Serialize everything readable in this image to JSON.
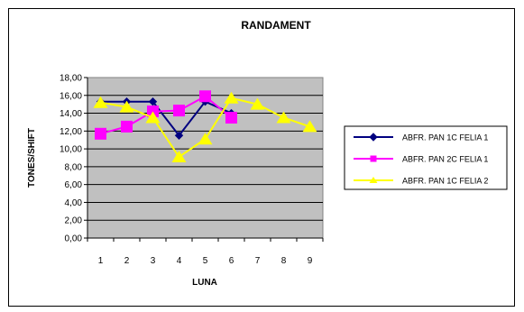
{
  "chart_data": {
    "type": "line",
    "title": "RANDAMENT",
    "xlabel": "LUNA",
    "ylabel": "TONES/SHIFT",
    "ylim": [
      0,
      18
    ],
    "yticks": [
      "0,00",
      "2,00",
      "4,00",
      "6,00",
      "8,00",
      "10,00",
      "12,00",
      "14,00",
      "16,00",
      "18,00"
    ],
    "categories": [
      "1",
      "2",
      "3",
      "4",
      "5",
      "6",
      "7",
      "8",
      "9"
    ],
    "grid": true,
    "legend_position": "right",
    "plot_background": "#c0c0c0",
    "series": [
      {
        "name": "ABFR. PAN 1C FELIA 1",
        "color": "#000080",
        "marker": "diamond",
        "values": [
          15.3,
          15.3,
          15.3,
          11.5,
          15.3,
          14.0,
          null,
          null,
          null
        ]
      },
      {
        "name": "ABFR. PAN 2C FELIA 1",
        "color": "#ff00ff",
        "marker": "square",
        "values": [
          11.7,
          12.5,
          14.2,
          14.3,
          15.9,
          13.5,
          null,
          null,
          null
        ]
      },
      {
        "name": "ABFR. PAN 1C FELIA 2",
        "color": "#ffff00",
        "marker": "triangle",
        "values": [
          15.2,
          14.7,
          13.5,
          9.1,
          11.1,
          15.7,
          15.0,
          13.5,
          12.5
        ]
      }
    ]
  }
}
